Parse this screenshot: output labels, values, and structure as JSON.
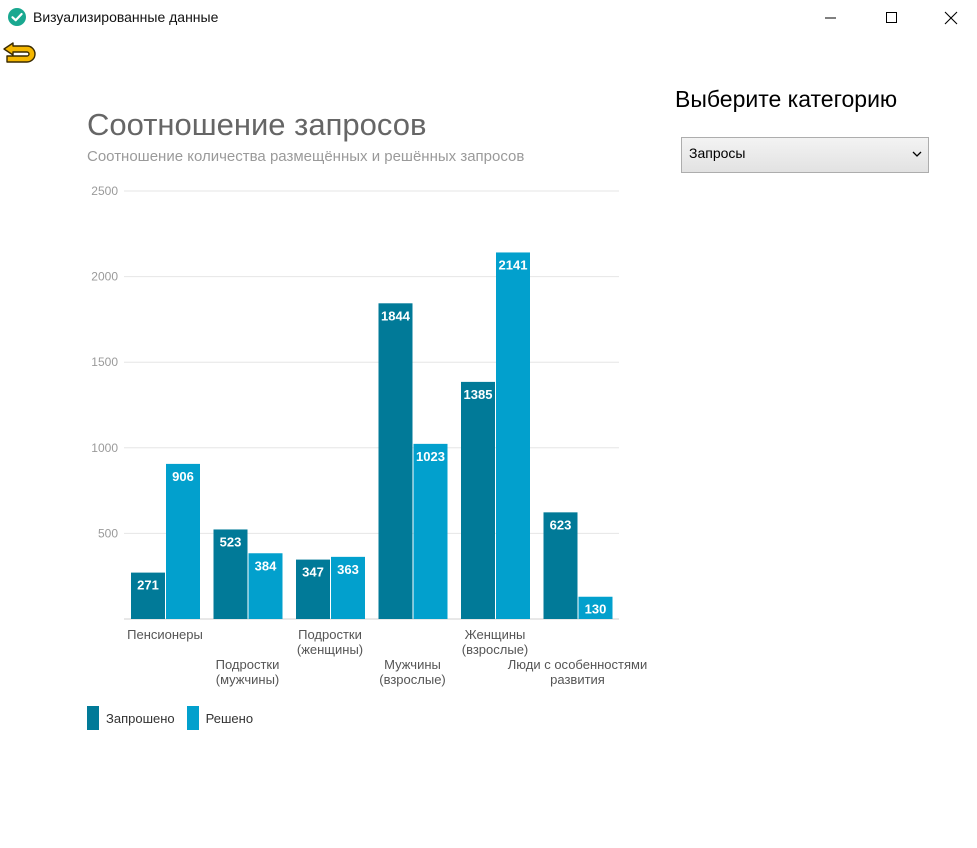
{
  "window": {
    "title": "Визуализированные данные"
  },
  "colors": {
    "requested": "#017a98",
    "solved": "#02a0cd",
    "app_icon": "#19a890",
    "back_icon": "#f5b700"
  },
  "panel": {
    "heading": "Выберите категорию",
    "select_value": "Запросы"
  },
  "chart": {
    "title": "Соотношение запросов",
    "subtitle": "Соотношение количества размещённых и решённых запросов"
  },
  "chart_data": {
    "type": "bar",
    "title": "Соотношение запросов",
    "subtitle": "Соотношение количества размещённых и решённых запросов",
    "categories": [
      [
        "Пенсионеры"
      ],
      [
        "Подростки",
        "(мужчины)"
      ],
      [
        "Подростки",
        "(женщины)"
      ],
      [
        "Мужчины",
        "(взрослые)"
      ],
      [
        "Женщины",
        "(взрослые)"
      ],
      [
        "Люди с особенностями",
        "развития"
      ]
    ],
    "series": [
      {
        "name": "Запрошено",
        "values": [
          271,
          523,
          347,
          1844,
          1385,
          623
        ]
      },
      {
        "name": "Решено",
        "values": [
          906,
          384,
          363,
          1023,
          2141,
          130
        ]
      }
    ],
    "yticks": [
      "500",
      "1000",
      "1500",
      "2000",
      "2500"
    ],
    "ylim": [
      0,
      2500
    ],
    "grid": true,
    "legend_position": "bottom-left"
  }
}
